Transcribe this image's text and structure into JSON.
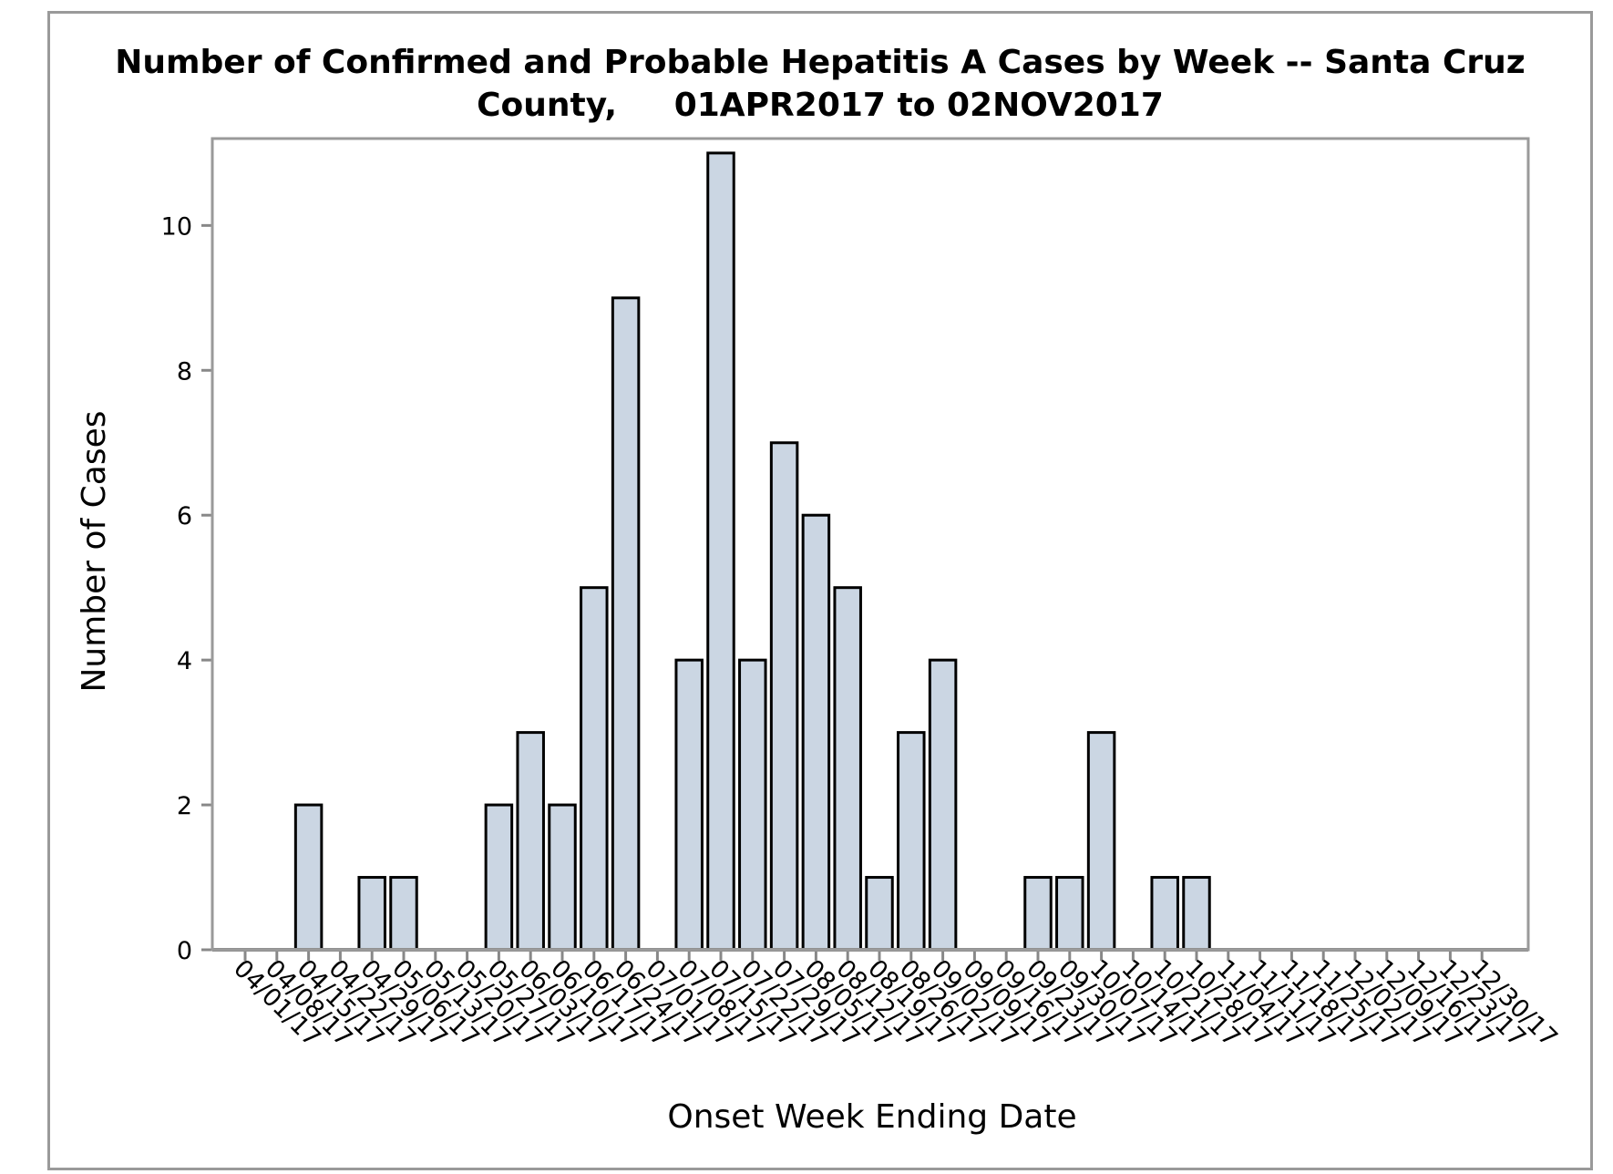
{
  "chart_data": {
    "type": "bar",
    "title_line1": "Number of Confirmed and Probable Hepatitis A Cases by Week -- Santa Cruz",
    "title_line2": "County,     01APR2017 to 02NOV2017",
    "xlabel": "Onset Week Ending Date",
    "ylabel": "Number of Cases",
    "ylim": [
      0,
      11.2
    ],
    "yticks": [
      0,
      2,
      4,
      6,
      8,
      10
    ],
    "grid": false,
    "categories": [
      "04/01/17",
      "04/08/17",
      "04/15/17",
      "04/22/17",
      "04/29/17",
      "05/06/17",
      "05/13/17",
      "05/20/17",
      "05/27/17",
      "06/03/17",
      "06/10/17",
      "06/17/17",
      "06/24/17",
      "07/01/17",
      "07/08/17",
      "07/15/17",
      "07/22/17",
      "07/29/17",
      "08/05/17",
      "08/12/17",
      "08/19/17",
      "08/26/17",
      "09/02/17",
      "09/09/17",
      "09/16/17",
      "09/23/17",
      "09/30/17",
      "10/07/17",
      "10/14/17",
      "10/21/17",
      "10/28/17",
      "11/04/17",
      "11/11/17",
      "11/18/17",
      "11/25/17",
      "12/02/17",
      "12/09/17",
      "12/16/17",
      "12/23/17",
      "12/30/17"
    ],
    "x_tick_labels": [
      "04/01/17",
      "04/08/17",
      "04/15/17",
      "04/22/17",
      "04/29/17",
      "05/06/17",
      "05/13/17",
      "05/20/17",
      "05/27/17",
      "06/03/17",
      "06/10/17",
      "06/17/17",
      "06/24/17",
      "07/01/17",
      "07/08/17",
      "07/15/17",
      "07/22/17",
      "07/29/17",
      "08/05/17",
      "08/12/17",
      "08/19/17",
      "08/26/17",
      "09/02/17",
      "09/09/17",
      "09/16/17",
      "09/23/17",
      "09/30/17",
      "10/07/17",
      "10/14/17",
      "10/21/17",
      "10/28/17",
      "11/04/17",
      "11/11/17",
      "11/18/17",
      "11/25/17",
      "12/02/17",
      "12/09/17",
      "12/16/17",
      "12/23/17",
      "12/30/17"
    ],
    "values": [
      0,
      0,
      2,
      0,
      1,
      1,
      0,
      0,
      2,
      3,
      2,
      5,
      9,
      0,
      4,
      11,
      4,
      7,
      6,
      5,
      1,
      3,
      4,
      0,
      0,
      1,
      1,
      3,
      0,
      1,
      1,
      0,
      0,
      0,
      0,
      0,
      0,
      0,
      0,
      0
    ],
    "colors": {
      "bar_fill": "#cbd6e3",
      "bar_stroke": "#000000",
      "axis": "#888888",
      "frame": "#9a9a9a"
    }
  }
}
